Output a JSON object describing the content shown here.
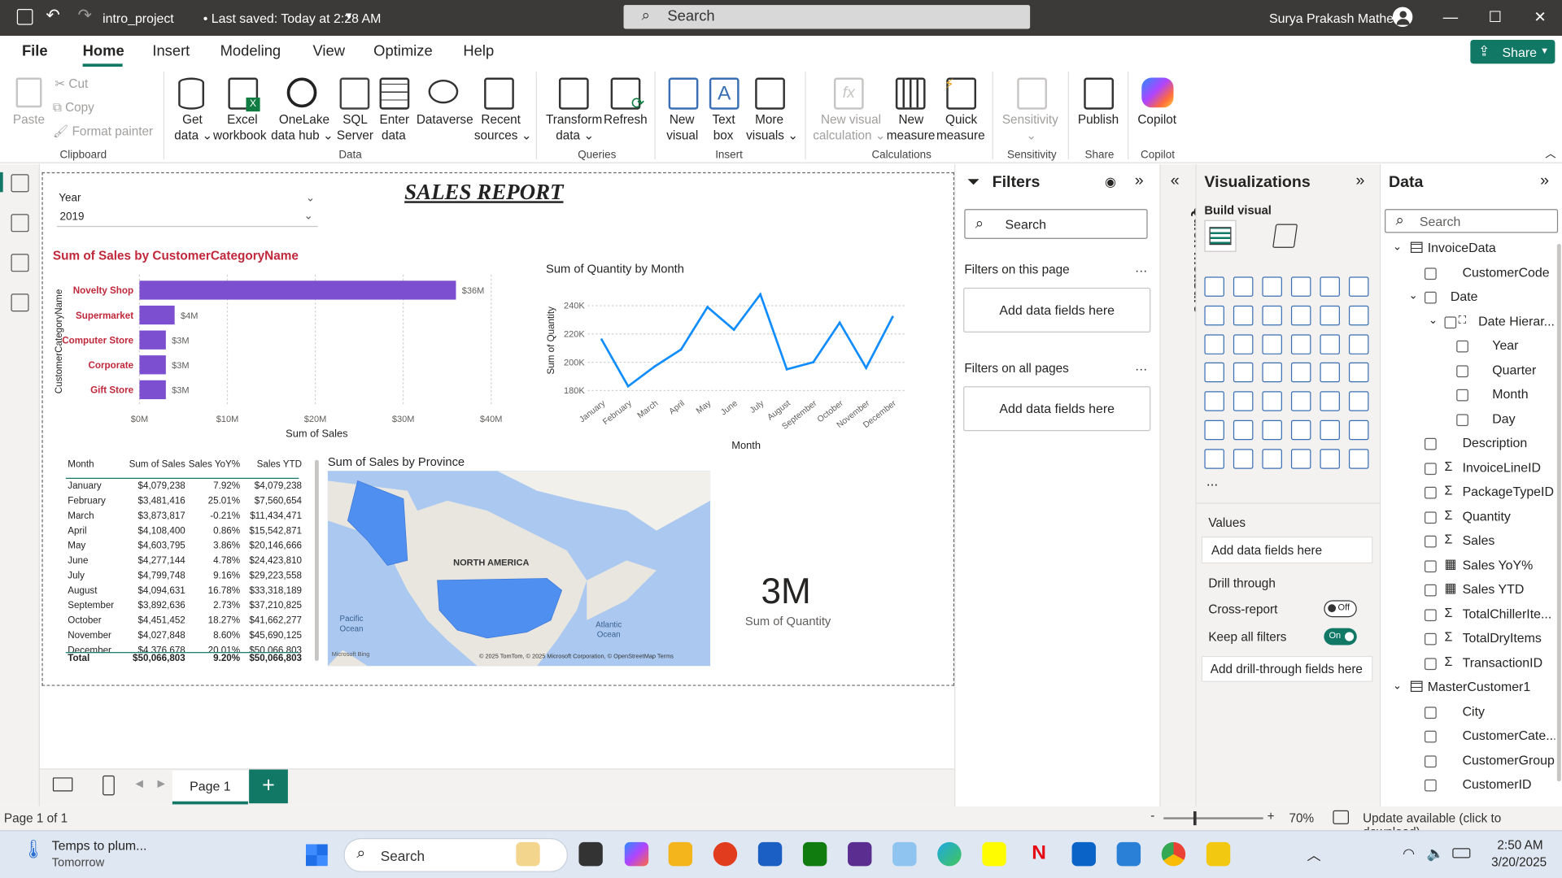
{
  "titlebar": {
    "project": "intro_project",
    "saved": "• Last saved: Today at 2:28 AM",
    "search": "Search",
    "user": "Surya Prakash Mathe"
  },
  "menu": [
    "File",
    "Home",
    "Insert",
    "Modeling",
    "View",
    "Optimize",
    "Help"
  ],
  "share": "Share",
  "ribbon": {
    "clipboard": {
      "paste": "Paste",
      "cut": "Cut",
      "copy": "Copy",
      "format": "Format painter",
      "group": "Clipboard"
    },
    "data": {
      "get": [
        "Get",
        "data"
      ],
      "excel": [
        "Excel",
        "workbook"
      ],
      "onelake": [
        "OneLake",
        "data hub"
      ],
      "sql": [
        "SQL",
        "Server"
      ],
      "enter": [
        "Enter",
        "data"
      ],
      "dataverse": "Dataverse",
      "recent": [
        "Recent",
        "sources"
      ],
      "group": "Data"
    },
    "queries": {
      "transform": [
        "Transform",
        "data"
      ],
      "refresh": "Refresh",
      "group": "Queries"
    },
    "insert": {
      "newvisual": [
        "New",
        "visual"
      ],
      "textbox": [
        "Text",
        "box"
      ],
      "more": [
        "More",
        "visuals"
      ],
      "group": "Insert"
    },
    "calc": {
      "newcalc": [
        "New visual",
        "calculation"
      ],
      "newmeasure": [
        "New",
        "measure"
      ],
      "quick": [
        "Quick",
        "measure"
      ],
      "group": "Calculations"
    },
    "sens": {
      "label": "Sensitivity",
      "group": "Sensitivity"
    },
    "share": {
      "label": "Publish",
      "group": "Share"
    },
    "copilot": {
      "label": "Copilot",
      "group": "Copilot"
    }
  },
  "report": {
    "title": "SALES REPORT",
    "slicer": {
      "label": "Year",
      "value": "2019"
    },
    "card": {
      "value": "3M",
      "label": "Sum of Quantity"
    },
    "map": {
      "title": "Sum of Sales by Province",
      "region": "NORTH AMERICA",
      "pacific": "Pacific Ocean",
      "atlantic": "Atlantic Ocean",
      "credit": "© 2025 TomTom, © 2025 Microsoft Corporation, © OpenStreetMap  Terms",
      "brand": "Microsoft Bing"
    },
    "table": {
      "headers": [
        "Month",
        "Sum of Sales",
        "Sales YoY%",
        "Sales YTD"
      ],
      "rows": [
        [
          "January",
          "$4,079,238",
          "7.92%",
          "$4,079,238"
        ],
        [
          "February",
          "$3,481,416",
          "25.01%",
          "$7,560,654"
        ],
        [
          "March",
          "$3,873,817",
          "-0.21%",
          "$11,434,471"
        ],
        [
          "April",
          "$4,108,400",
          "0.86%",
          "$15,542,871"
        ],
        [
          "May",
          "$4,603,795",
          "3.86%",
          "$20,146,666"
        ],
        [
          "June",
          "$4,277,144",
          "4.78%",
          "$24,423,810"
        ],
        [
          "July",
          "$4,799,748",
          "9.16%",
          "$29,223,558"
        ],
        [
          "August",
          "$4,094,631",
          "16.78%",
          "$33,318,189"
        ],
        [
          "September",
          "$3,892,636",
          "2.73%",
          "$37,210,825"
        ],
        [
          "October",
          "$4,451,452",
          "18.27%",
          "$41,662,277"
        ],
        [
          "November",
          "$4,027,848",
          "8.60%",
          "$45,690,125"
        ],
        [
          "December",
          "$4,376,678",
          "20.01%",
          "$50,066,803"
        ]
      ],
      "total": [
        "Total",
        "$50,066,803",
        "9.20%",
        "$50,066,803"
      ]
    }
  },
  "chart_data": [
    {
      "type": "bar",
      "title": "Sum of Sales by CustomerCategoryName",
      "xlabel": "Sum of Sales",
      "ylabel": "CustomerCategoryName",
      "categories": [
        "Novelty Shop",
        "Supermarket",
        "Computer Store",
        "Corporate",
        "Gift Store"
      ],
      "values": [
        36,
        4,
        3,
        3,
        3
      ],
      "data_labels": [
        "$36M",
        "$4M",
        "$3M",
        "$3M",
        "$3M"
      ],
      "xticks": [
        "$0M",
        "$10M",
        "$20M",
        "$30M",
        "$40M"
      ],
      "xlim": [
        0,
        40
      ],
      "color": "#7b4fd0"
    },
    {
      "type": "line",
      "title": "Sum of Quantity by Month",
      "xlabel": "Month",
      "ylabel": "Sum of Quantity",
      "categories": [
        "January",
        "February",
        "March",
        "April",
        "May",
        "June",
        "July",
        "August",
        "September",
        "October",
        "November",
        "December"
      ],
      "values": [
        216,
        183,
        197,
        209,
        239,
        223,
        248,
        195,
        200,
        228,
        196,
        232
      ],
      "yticks": [
        "180K",
        "200K",
        "220K",
        "240K"
      ],
      "ylim": [
        176,
        252
      ],
      "color": "#118dff"
    }
  ],
  "pages": {
    "current": "Page 1",
    "status": "Page 1 of 1",
    "zoom": "70%",
    "update": "Update available (click to download)"
  },
  "filters": {
    "title": "Filters",
    "search": "Search",
    "onpage": "Filters on this page",
    "allpages": "Filters on all pages",
    "add": "Add data fields here"
  },
  "quick": "Quick measure",
  "viz": {
    "title": "Visualizations",
    "build": "Build visual",
    "values": "Values",
    "addvalues": "Add data fields here",
    "drill": "Drill through",
    "cross": "Cross-report",
    "crossstate": "Off",
    "keep": "Keep all filters",
    "keepstate": "On",
    "adddrill": "Add drill-through fields here",
    "more": "..."
  },
  "data": {
    "title": "Data",
    "search": "Search",
    "items": [
      {
        "label": "InvoiceData",
        "type": "table",
        "lvl": 0
      },
      {
        "label": "CustomerCode",
        "type": "field",
        "lvl": 1
      },
      {
        "label": "Date",
        "type": "group",
        "lvl": 1
      },
      {
        "label": "Date Hierar...",
        "type": "hier",
        "lvl": 2
      },
      {
        "label": "Year",
        "type": "field",
        "lvl": 3
      },
      {
        "label": "Quarter",
        "type": "field",
        "lvl": 3
      },
      {
        "label": "Month",
        "type": "field",
        "lvl": 3
      },
      {
        "label": "Day",
        "type": "field",
        "lvl": 3
      },
      {
        "label": "Description",
        "type": "field",
        "lvl": 1
      },
      {
        "label": "InvoiceLineID",
        "type": "sum",
        "lvl": 1
      },
      {
        "label": "PackageTypeID",
        "type": "sum",
        "lvl": 1
      },
      {
        "label": "Quantity",
        "type": "sum",
        "lvl": 1
      },
      {
        "label": "Sales",
        "type": "sum",
        "lvl": 1
      },
      {
        "label": "Sales YoY%",
        "type": "calc",
        "lvl": 1
      },
      {
        "label": "Sales YTD",
        "type": "calc",
        "lvl": 1
      },
      {
        "label": "TotalChillerIte...",
        "type": "sum",
        "lvl": 1
      },
      {
        "label": "TotalDryItems",
        "type": "sum",
        "lvl": 1
      },
      {
        "label": "TransactionID",
        "type": "sum",
        "lvl": 1
      },
      {
        "label": "MasterCustomer1",
        "type": "table",
        "lvl": 0
      },
      {
        "label": "City",
        "type": "field",
        "lvl": 1
      },
      {
        "label": "CustomerCate...",
        "type": "field",
        "lvl": 1
      },
      {
        "label": "CustomerGroup",
        "type": "field",
        "lvl": 1
      },
      {
        "label": "CustomerID",
        "type": "field",
        "lvl": 1
      }
    ]
  },
  "taskbar": {
    "weather": "Temps to plum...",
    "weather2": "Tomorrow",
    "search": "Search",
    "time": "2:50 AM",
    "date": "3/20/2025"
  }
}
